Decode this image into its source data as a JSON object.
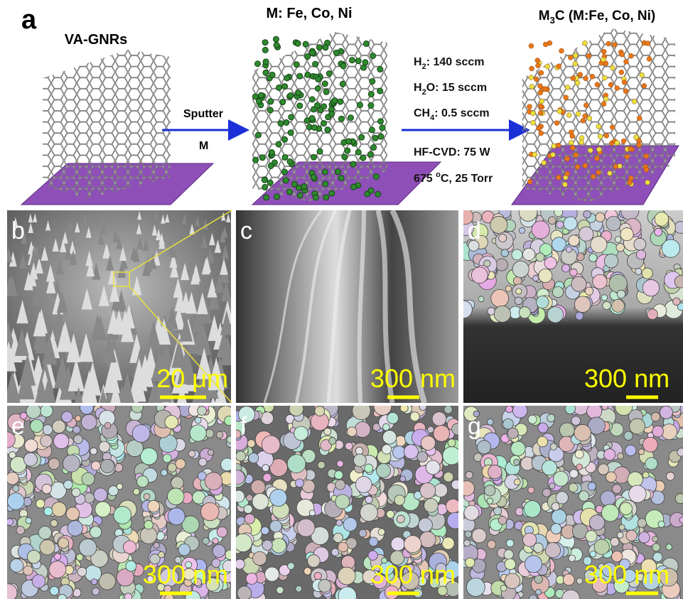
{
  "panel_a": {
    "label": "a",
    "stages": [
      {
        "title": "VA-GNRs"
      },
      {
        "title": "M: Fe, Co, Ni"
      },
      {
        "title": {
          "pre": "M",
          "sub": "3",
          "post": "C (M:Fe, Co, Ni)"
        }
      }
    ],
    "arrow1": {
      "top": "Sputter",
      "bottom": "M"
    },
    "conditions": [
      {
        "pre": "H",
        "sub": "2",
        "post": ": 140 sccm"
      },
      {
        "pre": "H",
        "sub": "2",
        "post": "O: 15 sccm"
      },
      {
        "pre": "CH",
        "sub": "4",
        "post": ": 0.5 sccm"
      },
      {
        "pre": "HF-CVD: 75 W",
        "sub": "",
        "post": ""
      },
      {
        "pre": "675 ",
        "sup": "o",
        "post": "C, 25 Torr"
      }
    ]
  },
  "sem_panels": [
    {
      "label": "b",
      "scale_bar": "20 μm"
    },
    {
      "label": "c",
      "scale_bar": "300 nm"
    },
    {
      "label": "d",
      "scale_bar": "300 nm"
    },
    {
      "label": "e",
      "scale_bar": "300 nm"
    },
    {
      "label": "f",
      "scale_bar": "300 nm"
    },
    {
      "label": "g",
      "scale_bar": "300 nm"
    }
  ]
}
